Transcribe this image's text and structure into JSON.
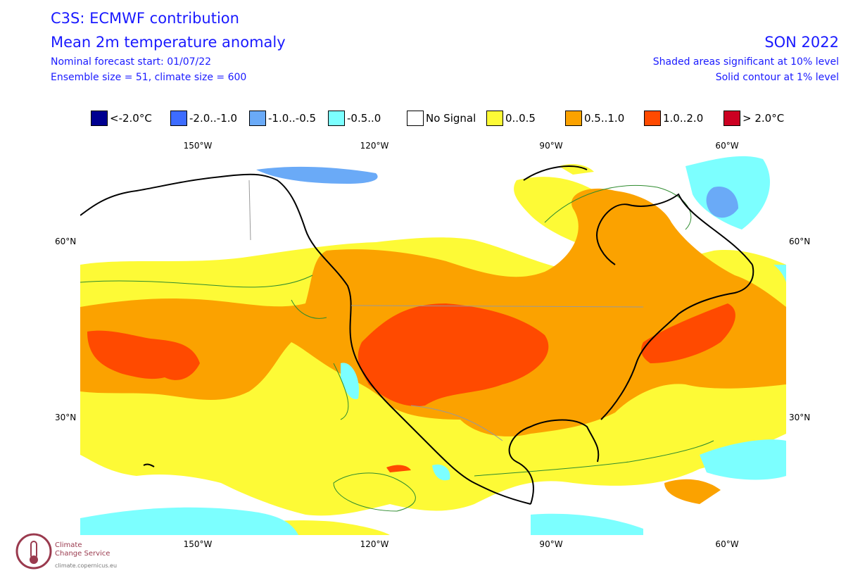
{
  "header": {
    "title_line1": "C3S: ECMWF contribution",
    "title_line2": "Mean 2m temperature anomaly",
    "forecast_start": "Nominal forecast start: 01/07/22",
    "ensemble": "Ensemble size = 51, climate size = 600",
    "season": "SON 2022",
    "significance_shaded": "Shaded areas significant at 10% level",
    "significance_contour": "Solid contour at 1% level"
  },
  "legend": [
    {
      "label": "<-2.0°C",
      "color": "#000090"
    },
    {
      "label": "-2.0..-1.0",
      "color": "#3d6cff"
    },
    {
      "label": "-1.0..-0.5",
      "color": "#6aaaf7"
    },
    {
      "label": "-0.5..0",
      "color": "#7cffff"
    },
    {
      "label": "No Signal",
      "color": "#ffffff"
    },
    {
      "label": "0..0.5",
      "color": "#fdfa36"
    },
    {
      "label": "0.5..1.0",
      "color": "#fba200"
    },
    {
      "label": "1.0..2.0",
      "color": "#ff4a00"
    },
    {
      "label": "> 2.0°C",
      "color": "#cc0022"
    }
  ],
  "axes": {
    "lon_labels": [
      "150°W",
      "120°W",
      "90°W",
      "60°W"
    ],
    "lat_labels": [
      "60°N",
      "30°N"
    ]
  },
  "map": {
    "lon_range": [
      "170°W",
      "50°W"
    ],
    "lat_range": [
      "10°N",
      "75°N"
    ],
    "colors": {
      "land_outline": "#000000",
      "border": "#999999",
      "significance_contour": "#2e8b2e"
    }
  },
  "footer": {
    "org_line1": "Climate",
    "org_line2": "Change Service",
    "url": "climate.copernicus.eu"
  }
}
